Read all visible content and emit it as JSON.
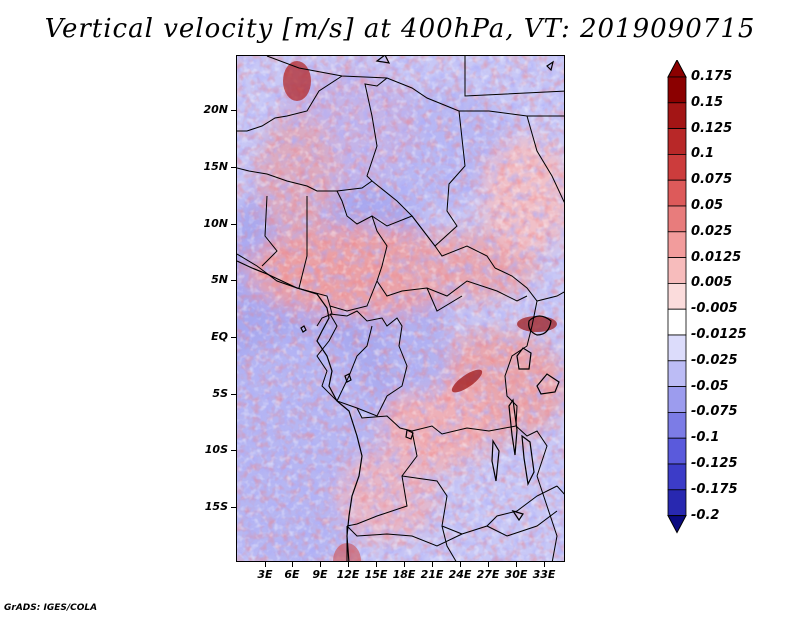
{
  "title": "Vertical velocity [m/s] at 400hPa, VT: 2019090715",
  "lat_labels": [
    "20N",
    "15N",
    "10N",
    "5N",
    "EQ",
    "5S",
    "10S",
    "15S"
  ],
  "lon_labels": [
    "3E",
    "6E",
    "9E",
    "12E",
    "15E",
    "18E",
    "21E",
    "24E",
    "27E",
    "30E",
    "33E"
  ],
  "colorbar": {
    "labels": [
      "0.175",
      "0.15",
      "0.125",
      "0.1",
      "0.075",
      "0.05",
      "0.025",
      "0.0125",
      "0.005",
      "-0.005",
      "-0.0125",
      "-0.025",
      "-0.05",
      "-0.075",
      "-0.1",
      "-0.125",
      "-0.175",
      "-0.2"
    ],
    "colors": [
      "#8b0000",
      "#a31515",
      "#b82828",
      "#cc3c3c",
      "#dd5a5a",
      "#e87c7c",
      "#f29c9c",
      "#f7bcbc",
      "#fbdcdc",
      "#ffffff",
      "#dcdcfb",
      "#bcbcf5",
      "#9c9cee",
      "#7c7ce6",
      "#5a5adc",
      "#3c3cc8",
      "#2828b0",
      "#141496"
    ],
    "low_color": "#0a0a80",
    "high_color": "#8b0000"
  },
  "credit": "GrADS: IGES/COLA"
}
